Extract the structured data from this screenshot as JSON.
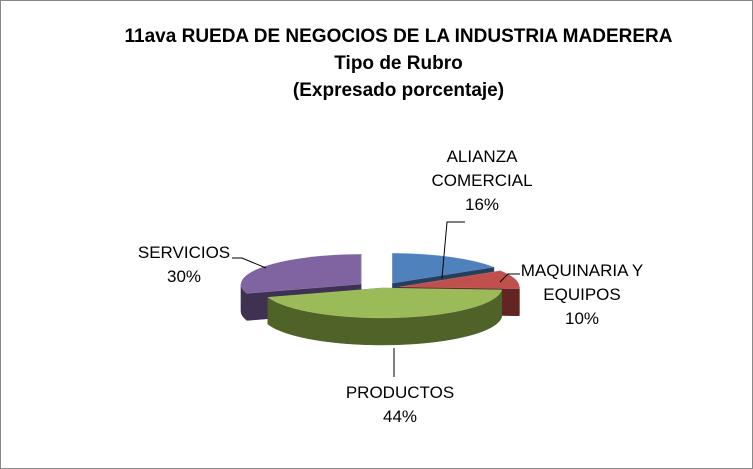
{
  "chart_data": {
    "type": "pie",
    "three_d": true,
    "title": "11ava RUEDA DE NEGOCIOS DE LA INDUSTRIA MADERERA",
    "subtitle": "Tipo de Rubro",
    "subtitle2": "(Expresado porcentaje)",
    "categories": [
      "ALIANZA COMERCIAL",
      "MAQUINARIA Y EQUIPOS",
      "PRODUCTOS",
      "SERVICIOS"
    ],
    "values": [
      16,
      10,
      44,
      30
    ],
    "value_labels": [
      "16%",
      "10%",
      "44%",
      "30%"
    ],
    "label_lines": [
      [
        "ALIANZA",
        "COMERCIAL",
        "16%"
      ],
      [
        "MAQUINARIA Y",
        "EQUIPOS",
        "10%"
      ],
      [
        "PRODUCTOS",
        "44%"
      ],
      [
        "SERVICIOS",
        "30%"
      ]
    ],
    "colors": [
      "#4f81bd",
      "#c0504d",
      "#9bbb59",
      "#8064a2"
    ],
    "side_colors": [
      "#243f60",
      "#632523",
      "#4f6228",
      "#3f3151"
    ],
    "exploded": true,
    "legend": "none",
    "data_labels": "outside-with-leader-lines"
  }
}
